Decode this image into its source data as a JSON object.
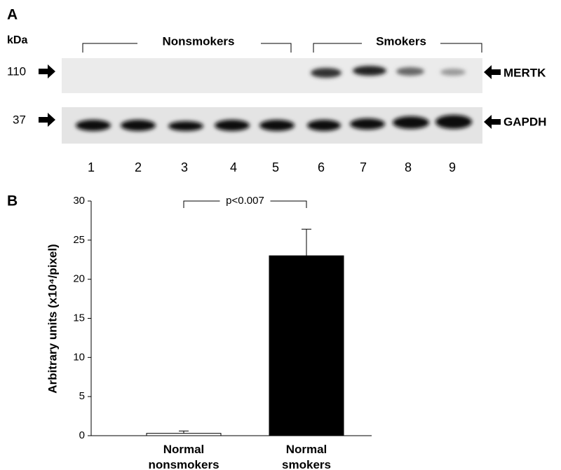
{
  "panel_a": {
    "label": "A",
    "unit_label": "kDa",
    "groups": [
      "Nonsmokers",
      "Smokers"
    ],
    "rows": [
      {
        "size": 110,
        "protein": "MERTK"
      },
      {
        "size": 37,
        "protein": "GAPDH"
      }
    ],
    "lanes": [
      1,
      2,
      3,
      4,
      5,
      6,
      7,
      8,
      9
    ]
  },
  "panel_b_label": "B",
  "chart_data": {
    "type": "bar",
    "ylabel": "Arbitrary units (x10⁴/pixel)",
    "categories": [
      "Normal nonsmokers",
      "Normal smokers"
    ],
    "values": [
      0.3,
      23
    ],
    "errors": [
      0.3,
      3.4
    ],
    "colors": [
      "#ffffff",
      "#000000"
    ],
    "ylim": [
      0,
      30
    ],
    "yticks": [
      0,
      5,
      10,
      15,
      20,
      25,
      30
    ],
    "annotation": "p<0.007"
  }
}
